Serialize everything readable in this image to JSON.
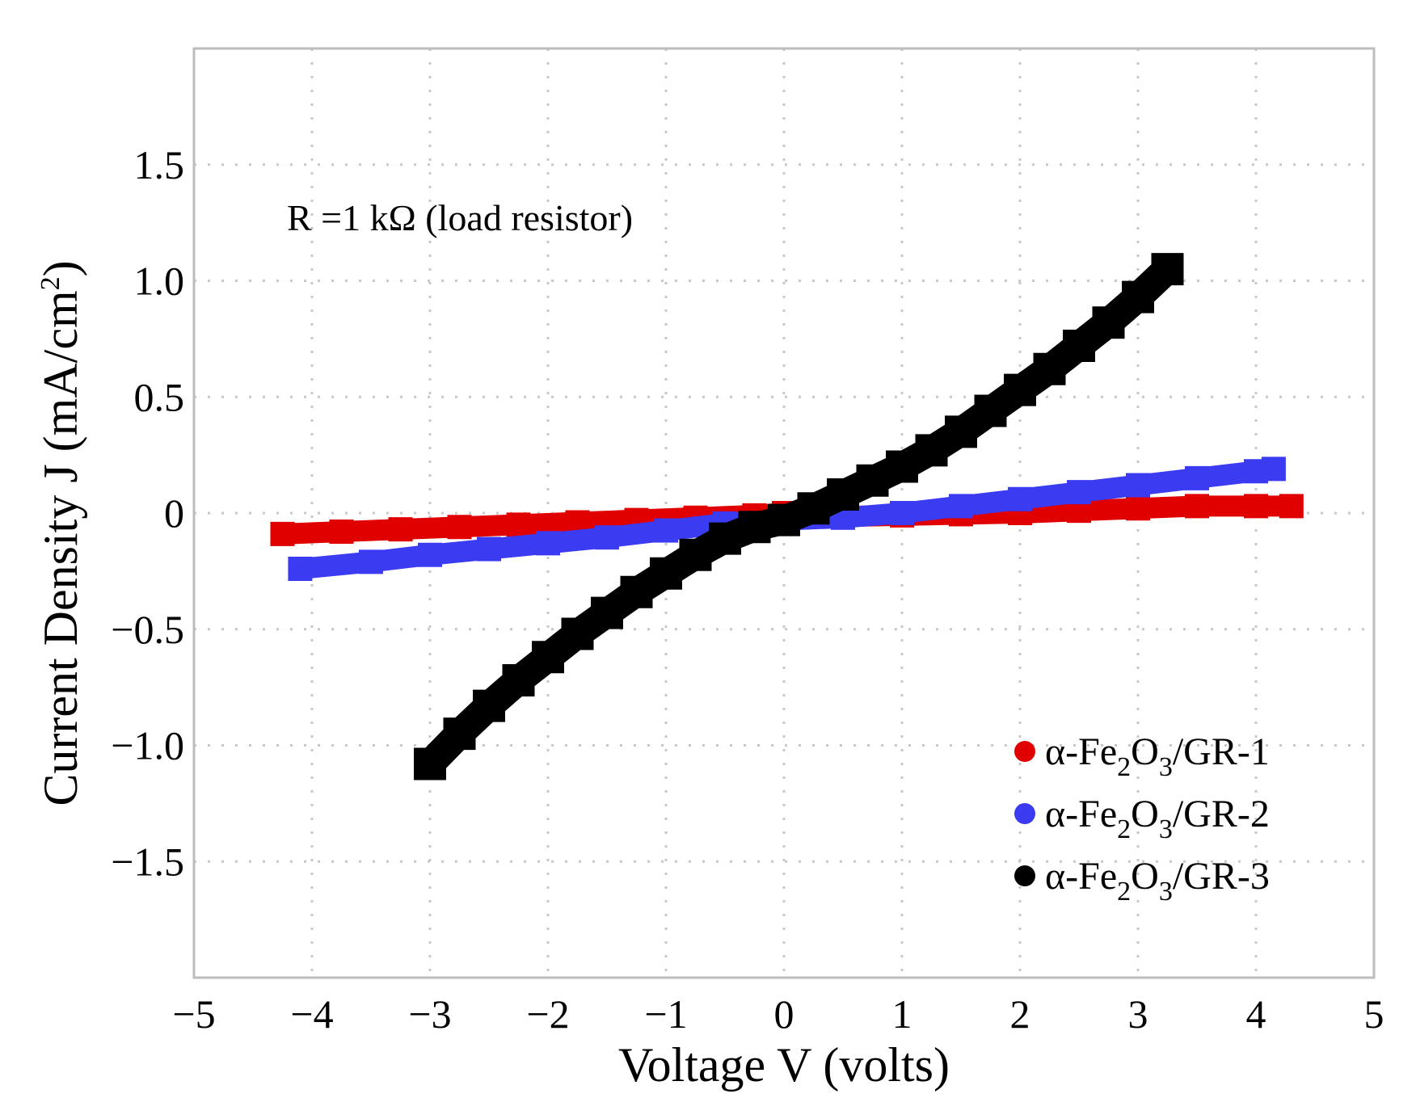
{
  "chart_data": {
    "type": "scatter",
    "title": "",
    "xlabel": "Voltage V (volts)",
    "ylabel": "Current Density J (mA/cm2)",
    "ylabel_parts": {
      "main": "Current Density J (mA/cm",
      "sup": "2",
      "close": ")"
    },
    "xlim": [
      -5,
      5
    ],
    "ylim": [
      -2.0,
      2.0
    ],
    "grid": true,
    "legend_position": "bottom-right",
    "x_ticks": [
      -5,
      -4,
      -3,
      -2,
      -1,
      0,
      1,
      2,
      3,
      4,
      5
    ],
    "x_tick_labels": [
      "−5",
      "−4",
      "−3",
      "−2",
      "−1",
      "0",
      "1",
      "2",
      "3",
      "4",
      "5"
    ],
    "y_ticks": [
      1.5,
      1.0,
      0.5,
      0,
      -0.5,
      -1.0,
      -1.5
    ],
    "y_tick_labels": [
      "1.5",
      "1.0",
      "0.5",
      "0",
      "−0.5",
      "−1.0",
      "−1.5"
    ],
    "annotation": "R =1 kΩ (load resistor)",
    "series": [
      {
        "name": "α-Fe2O3/GR-1",
        "legend": {
          "prefix": "α-Fe",
          "sub1": "2",
          "mid": "O",
          "sub2": "3",
          "suffix": "/GR-1"
        },
        "color": "#e00000",
        "x": [
          -4.25,
          -3.75,
          -3.25,
          -2.75,
          -2.25,
          -1.75,
          -1.25,
          -0.75,
          -0.25,
          0.0,
          0.5,
          1.0,
          1.5,
          2.0,
          2.5,
          3.0,
          3.5,
          4.0,
          4.3
        ],
        "y": [
          -0.09,
          -0.08,
          -0.07,
          -0.06,
          -0.05,
          -0.04,
          -0.03,
          -0.02,
          -0.01,
          0.0,
          -0.015,
          -0.01,
          -0.005,
          0.0,
          0.01,
          0.02,
          0.03,
          0.03,
          0.03
        ]
      },
      {
        "name": "α-Fe2O3/GR-2",
        "legend": {
          "prefix": "α-Fe",
          "sub1": "2",
          "mid": "O",
          "sub2": "3",
          "suffix": "/GR-2"
        },
        "color": "#3b3bf2",
        "x": [
          -4.1,
          -3.5,
          -3.0,
          -2.5,
          -2.0,
          -1.5,
          -1.0,
          -0.5,
          0.0,
          0.5,
          1.0,
          1.5,
          2.0,
          2.5,
          3.0,
          3.5,
          4.0,
          4.15
        ],
        "y": [
          -0.24,
          -0.21,
          -0.18,
          -0.155,
          -0.13,
          -0.105,
          -0.075,
          -0.045,
          -0.03,
          -0.02,
          0.0,
          0.03,
          0.06,
          0.09,
          0.12,
          0.15,
          0.18,
          0.19
        ]
      },
      {
        "name": "α-Fe2O3/GR-3",
        "legend": {
          "prefix": "α-Fe",
          "sub1": "2",
          "mid": "O",
          "sub2": "3",
          "suffix": "/GR-3"
        },
        "color": "#000000",
        "x": [
          -3.0,
          -2.75,
          -2.5,
          -2.25,
          -2.0,
          -1.75,
          -1.5,
          -1.25,
          -1.0,
          -0.75,
          -0.5,
          -0.25,
          0.0,
          0.25,
          0.5,
          0.75,
          1.0,
          1.25,
          1.5,
          1.75,
          2.0,
          2.25,
          2.5,
          2.75,
          3.0,
          3.25
        ],
        "y": [
          -1.08,
          -0.95,
          -0.83,
          -0.72,
          -0.62,
          -0.52,
          -0.43,
          -0.34,
          -0.26,
          -0.18,
          -0.11,
          -0.06,
          -0.03,
          0.02,
          0.08,
          0.14,
          0.2,
          0.27,
          0.35,
          0.44,
          0.53,
          0.62,
          0.72,
          0.82,
          0.93,
          1.05
        ]
      }
    ]
  }
}
